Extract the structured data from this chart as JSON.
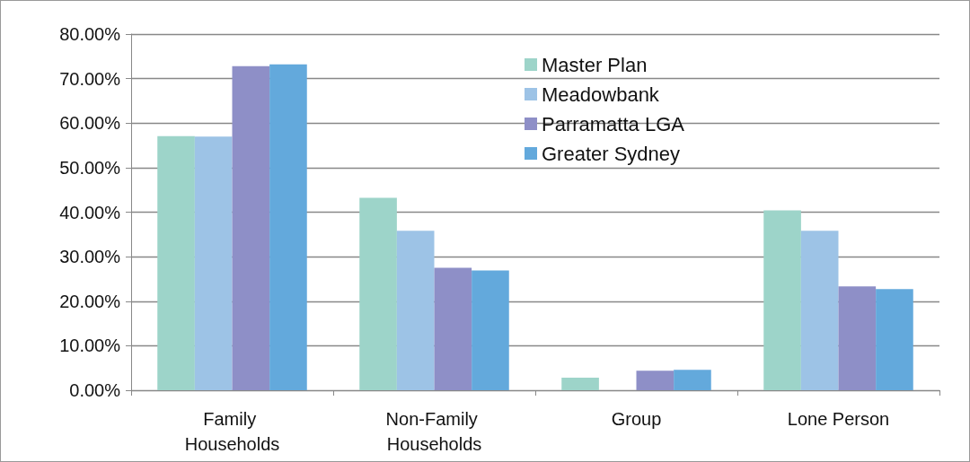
{
  "chart_data": {
    "type": "bar",
    "categories": [
      "Family Households",
      "Non-Family Households",
      "Group",
      "Lone Person"
    ],
    "series": [
      {
        "name": "Master Plan",
        "color": "#9dd4c9",
        "values": [
          57.1,
          43.2,
          2.8,
          40.4
        ]
      },
      {
        "name": "Meadowbank",
        "color": "#9dc3e6",
        "values": [
          57.0,
          35.8,
          0,
          35.8
        ]
      },
      {
        "name": "Parramatta LGA",
        "color": "#8e8fc7",
        "values": [
          72.8,
          27.5,
          4.4,
          23.3
        ]
      },
      {
        "name": "Greater Sydney",
        "color": "#63a9dc",
        "values": [
          73.2,
          26.9,
          4.6,
          22.7
        ]
      }
    ],
    "ylim": [
      0,
      80
    ],
    "yticks": [
      {
        "value": 0,
        "label": "0.00%"
      },
      {
        "value": 10,
        "label": "10.00%"
      },
      {
        "value": 20,
        "label": "20.00%"
      },
      {
        "value": 30,
        "label": "30.00%"
      },
      {
        "value": 40,
        "label": "40.00%"
      },
      {
        "value": 50,
        "label": "50.00%"
      },
      {
        "value": 60,
        "label": "60.00%"
      },
      {
        "value": 70,
        "label": "70.00%"
      },
      {
        "value": 80,
        "label": "80.00%"
      }
    ],
    "grid": "y",
    "legend": "top right"
  }
}
